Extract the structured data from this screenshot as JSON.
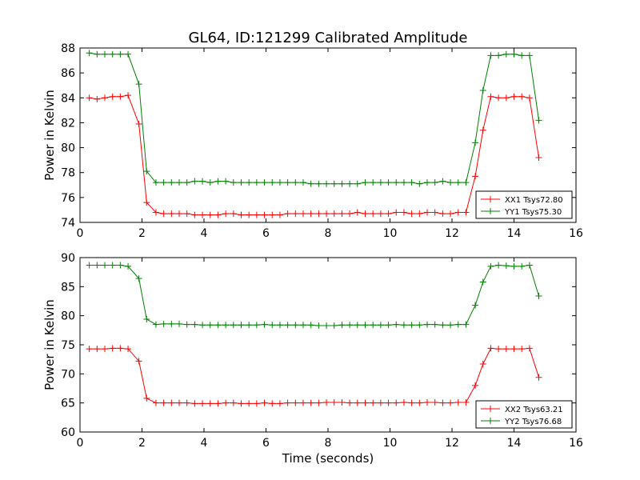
{
  "title": "GL64, ID:121299 Calibrated Amplitude",
  "xlabel": "Time (seconds)",
  "chart_data": [
    {
      "type": "line",
      "ylabel": "Power in Kelvin",
      "xlim": [
        0,
        16
      ],
      "ylim": [
        74,
        88
      ],
      "xticks": [
        0,
        2,
        4,
        6,
        8,
        10,
        12,
        14,
        16
      ],
      "yticks": [
        74,
        76,
        78,
        80,
        82,
        84,
        86,
        88
      ],
      "legend_position": "lower-right",
      "x": [
        0.3,
        0.55,
        0.8,
        1.05,
        1.3,
        1.55,
        1.9,
        2.15,
        2.45,
        2.7,
        2.95,
        3.2,
        3.45,
        3.7,
        3.95,
        4.2,
        4.45,
        4.7,
        4.95,
        5.2,
        5.45,
        5.7,
        5.95,
        6.2,
        6.45,
        6.7,
        6.95,
        7.2,
        7.45,
        7.7,
        7.95,
        8.2,
        8.45,
        8.7,
        8.95,
        9.2,
        9.45,
        9.7,
        9.95,
        10.2,
        10.45,
        10.7,
        10.95,
        11.2,
        11.45,
        11.7,
        11.95,
        12.2,
        12.45,
        12.75,
        13.0,
        13.25,
        13.5,
        13.75,
        14.0,
        14.25,
        14.5,
        14.8
      ],
      "series": [
        {
          "name": "XX1 Tsys72.80",
          "color": "#ff0000",
          "values": [
            84.0,
            83.9,
            84.0,
            84.1,
            84.1,
            84.2,
            81.9,
            75.6,
            74.8,
            74.7,
            74.7,
            74.7,
            74.7,
            74.6,
            74.6,
            74.6,
            74.6,
            74.7,
            74.7,
            74.6,
            74.6,
            74.6,
            74.6,
            74.6,
            74.6,
            74.7,
            74.7,
            74.7,
            74.7,
            74.7,
            74.7,
            74.7,
            74.7,
            74.7,
            74.8,
            74.7,
            74.7,
            74.7,
            74.7,
            74.8,
            74.8,
            74.7,
            74.7,
            74.8,
            74.8,
            74.7,
            74.7,
            74.8,
            74.8,
            77.7,
            81.4,
            84.1,
            84.0,
            84.0,
            84.1,
            84.1,
            84.0,
            79.2
          ]
        },
        {
          "name": "YY1 Tsys75.30",
          "color": "#008000",
          "values": [
            87.6,
            87.5,
            87.5,
            87.5,
            87.5,
            87.5,
            85.1,
            78.1,
            77.2,
            77.2,
            77.2,
            77.2,
            77.2,
            77.3,
            77.3,
            77.2,
            77.3,
            77.3,
            77.2,
            77.2,
            77.2,
            77.2,
            77.2,
            77.2,
            77.2,
            77.2,
            77.2,
            77.2,
            77.1,
            77.1,
            77.1,
            77.1,
            77.1,
            77.1,
            77.1,
            77.2,
            77.2,
            77.2,
            77.2,
            77.2,
            77.2,
            77.2,
            77.1,
            77.2,
            77.2,
            77.3,
            77.2,
            77.2,
            77.2,
            80.4,
            84.6,
            87.4,
            87.4,
            87.5,
            87.5,
            87.4,
            87.4,
            82.2
          ]
        }
      ]
    },
    {
      "type": "line",
      "ylabel": "Power in Kelvin",
      "xlabel": "Time (seconds)",
      "xlim": [
        0,
        16
      ],
      "ylim": [
        60,
        90
      ],
      "xticks": [
        0,
        2,
        4,
        6,
        8,
        10,
        12,
        14,
        16
      ],
      "yticks": [
        60,
        65,
        70,
        75,
        80,
        85,
        90
      ],
      "legend_position": "lower-right",
      "x": [
        0.3,
        0.55,
        0.8,
        1.05,
        1.3,
        1.55,
        1.9,
        2.15,
        2.45,
        2.7,
        2.95,
        3.2,
        3.45,
        3.7,
        3.95,
        4.2,
        4.45,
        4.7,
        4.95,
        5.2,
        5.45,
        5.7,
        5.95,
        6.2,
        6.45,
        6.7,
        6.95,
        7.2,
        7.45,
        7.7,
        7.95,
        8.2,
        8.45,
        8.7,
        8.95,
        9.2,
        9.45,
        9.7,
        9.95,
        10.2,
        10.45,
        10.7,
        10.95,
        11.2,
        11.45,
        11.7,
        11.95,
        12.2,
        12.45,
        12.75,
        13.0,
        13.25,
        13.5,
        13.75,
        14.0,
        14.25,
        14.5,
        14.8
      ],
      "series": [
        {
          "name": "XX2 Tsys63.21",
          "color": "#ff0000",
          "values": [
            74.3,
            74.3,
            74.3,
            74.4,
            74.4,
            74.3,
            72.2,
            65.8,
            65.0,
            65.0,
            65.0,
            65.0,
            65.0,
            64.9,
            64.9,
            64.9,
            64.9,
            65.0,
            65.0,
            64.9,
            64.9,
            64.9,
            65.0,
            64.9,
            64.9,
            65.0,
            65.0,
            65.0,
            65.0,
            65.0,
            65.1,
            65.1,
            65.1,
            65.0,
            65.0,
            65.0,
            65.0,
            65.0,
            65.0,
            65.0,
            65.1,
            65.0,
            65.0,
            65.1,
            65.1,
            65.0,
            65.0,
            65.1,
            65.1,
            68.0,
            71.7,
            74.4,
            74.3,
            74.3,
            74.3,
            74.3,
            74.4,
            69.4
          ]
        },
        {
          "name": "YY2 Tsys76.68",
          "color": "#008000",
          "values": [
            88.7,
            88.7,
            88.7,
            88.7,
            88.7,
            88.5,
            86.4,
            79.4,
            78.5,
            78.6,
            78.6,
            78.6,
            78.5,
            78.5,
            78.4,
            78.4,
            78.4,
            78.4,
            78.4,
            78.4,
            78.4,
            78.4,
            78.5,
            78.4,
            78.4,
            78.4,
            78.4,
            78.4,
            78.4,
            78.3,
            78.3,
            78.3,
            78.4,
            78.4,
            78.4,
            78.4,
            78.4,
            78.4,
            78.4,
            78.5,
            78.4,
            78.4,
            78.4,
            78.5,
            78.5,
            78.4,
            78.4,
            78.5,
            78.5,
            81.8,
            85.8,
            88.5,
            88.7,
            88.6,
            88.5,
            88.5,
            88.7,
            83.4
          ]
        }
      ]
    }
  ]
}
